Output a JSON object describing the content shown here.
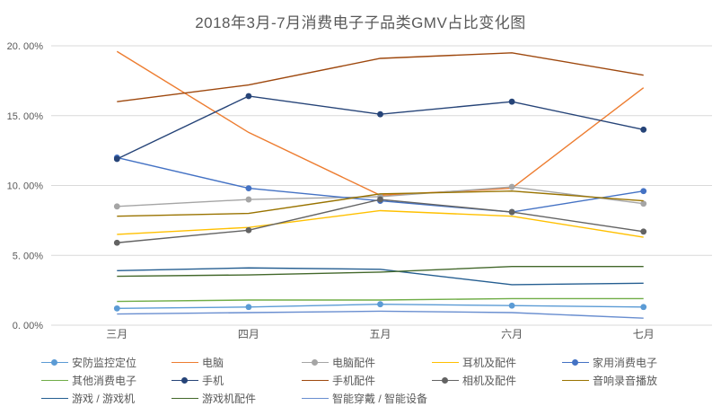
{
  "chart_data": {
    "type": "line",
    "title": "2018年3月-7月消费电子子品类GMV占比变化图",
    "categories": [
      "三月",
      "四月",
      "五月",
      "六月",
      "七月"
    ],
    "xlabel": "",
    "ylabel": "",
    "y_axis": {
      "min": 0,
      "max": 20,
      "step": 5,
      "tick_labels": [
        "0. 00%",
        "5. 00%",
        "10. 00%",
        "15. 00%",
        "20. 00%"
      ]
    },
    "grid": true,
    "legend_position": "bottom",
    "series": [
      {
        "name": "安防监控定位",
        "color": "#5B9BD5",
        "markers": true,
        "values": [
          1.2,
          1.3,
          1.5,
          1.4,
          1.3
        ]
      },
      {
        "name": "电脑",
        "color": "#ED7D31",
        "markers": false,
        "values": [
          19.6,
          13.8,
          9.3,
          9.8,
          17.0
        ]
      },
      {
        "name": "电脑配件",
        "color": "#A5A5A5",
        "markers": true,
        "values": [
          8.5,
          9.0,
          9.2,
          9.9,
          8.7
        ]
      },
      {
        "name": "耳机及配件",
        "color": "#FFC000",
        "markers": false,
        "values": [
          6.5,
          7.0,
          8.2,
          7.8,
          6.3
        ]
      },
      {
        "name": "家用消费电子",
        "color": "#4472C4",
        "markers": true,
        "values": [
          12.0,
          9.8,
          8.9,
          8.1,
          9.6
        ]
      },
      {
        "name": "其他消费电子",
        "color": "#70AD47",
        "markers": false,
        "values": [
          1.7,
          1.8,
          1.8,
          1.9,
          1.9
        ]
      },
      {
        "name": "手机",
        "color": "#264478",
        "markers": true,
        "values": [
          11.9,
          16.4,
          15.1,
          16.0,
          14.0
        ]
      },
      {
        "name": "手机配件",
        "color": "#9E480E",
        "markers": false,
        "values": [
          16.0,
          17.2,
          19.1,
          19.5,
          17.9
        ]
      },
      {
        "name": "相机及配件",
        "color": "#636363",
        "markers": true,
        "values": [
          5.9,
          6.8,
          9.0,
          8.1,
          6.7
        ]
      },
      {
        "name": "音响录音播放",
        "color": "#997300",
        "markers": false,
        "values": [
          7.8,
          8.0,
          9.4,
          9.6,
          8.9
        ]
      },
      {
        "name": "游戏 / 游戏机",
        "color": "#255E91",
        "markers": false,
        "values": [
          3.9,
          4.1,
          4.0,
          2.9,
          3.0
        ]
      },
      {
        "name": "游戏机配件",
        "color": "#43682B",
        "markers": false,
        "values": [
          3.5,
          3.6,
          3.8,
          4.2,
          4.2
        ]
      },
      {
        "name": "智能穿戴 / 智能设备",
        "color": "#698ED0",
        "markers": false,
        "values": [
          0.8,
          0.9,
          1.0,
          0.9,
          0.5
        ]
      }
    ]
  },
  "style": {
    "grid_color": "#D9D9D9",
    "axis_text_color": "#595959",
    "title_color": "#595959",
    "background": "#FFFFFF"
  }
}
